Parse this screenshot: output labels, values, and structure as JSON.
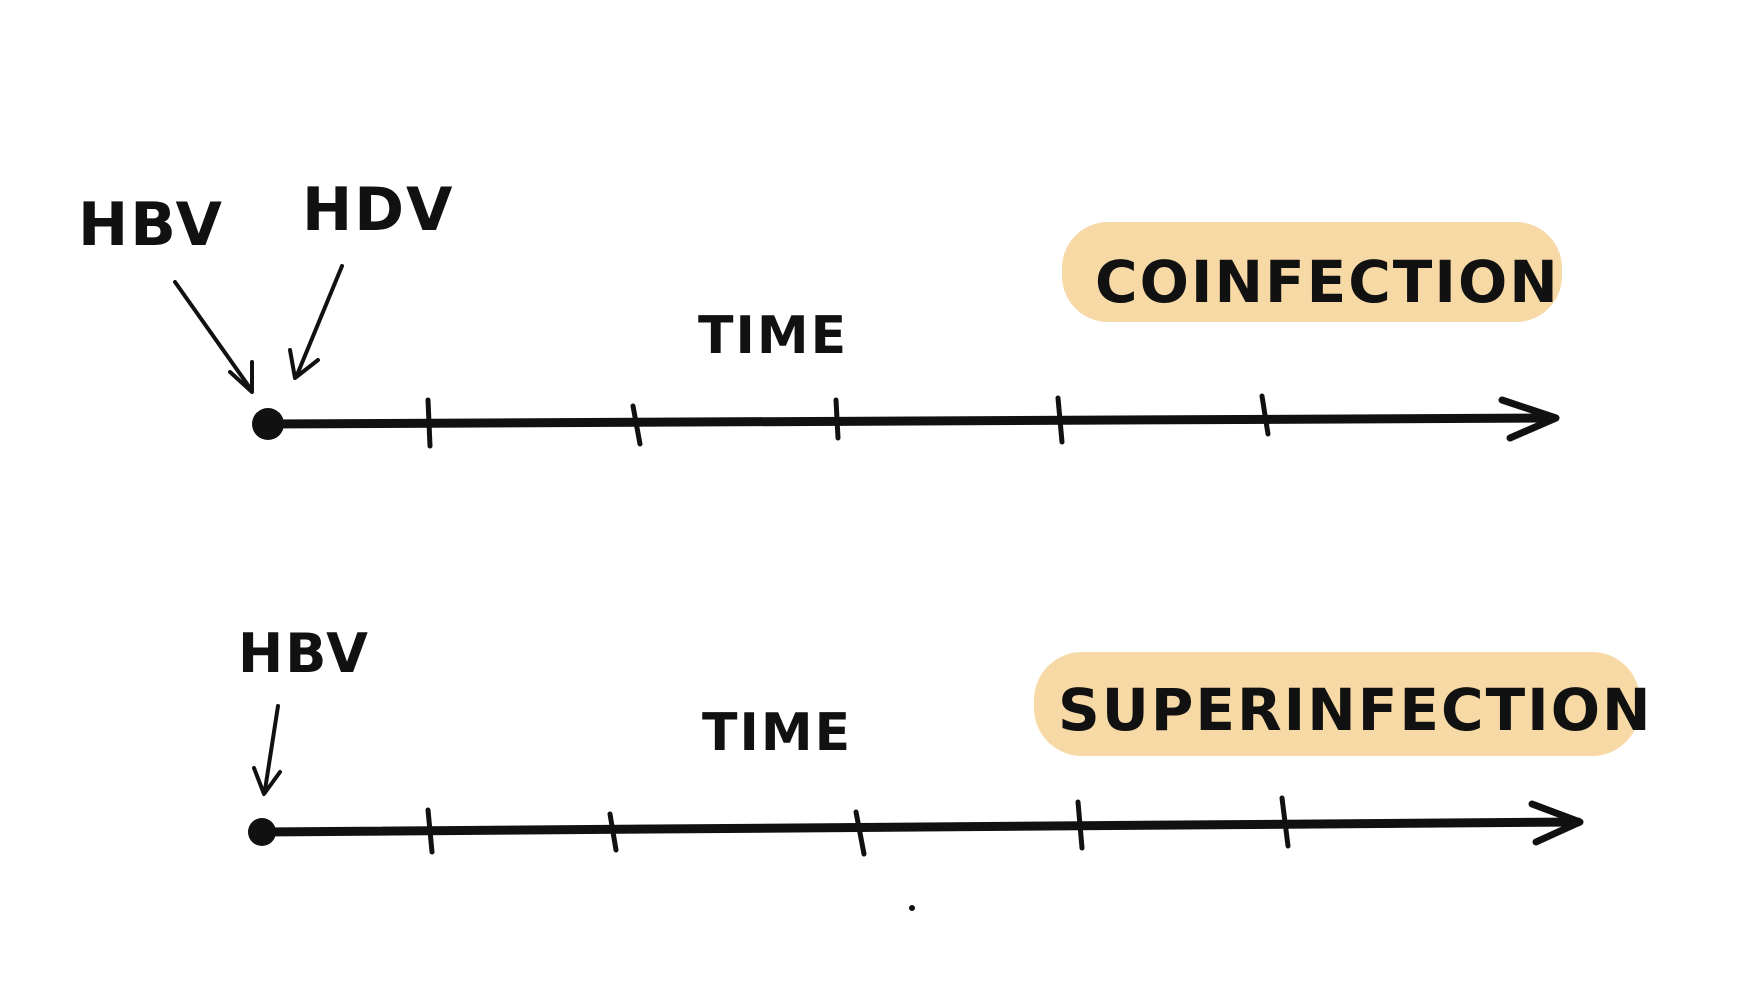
{
  "colors": {
    "ink": "#111111",
    "highlight": "#f7d9a6",
    "background": "#ffffff"
  },
  "coinfection": {
    "marker_left_label": "HBV",
    "marker_right_label": "HDV",
    "axis_label": "TIME",
    "title": "COINFECTION"
  },
  "superinfection": {
    "marker_label": "HBV",
    "axis_label": "TIME",
    "title": "SUPERINFECTION"
  }
}
